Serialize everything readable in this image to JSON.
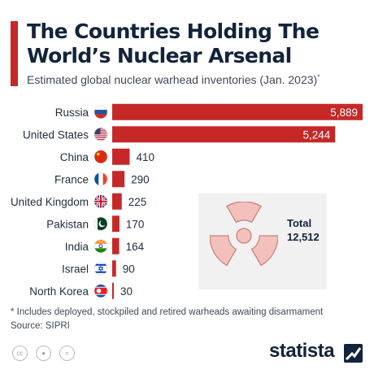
{
  "header": {
    "title": "The Countries Holding The World’s Nuclear Arsenal",
    "subtitle": "Estimated global nuclear warhead inventories (Jan. 2023)",
    "subtitle_mark": "*"
  },
  "chart_data": {
    "type": "bar",
    "orientation": "horizontal",
    "categories": [
      "Russia",
      "United States",
      "China",
      "France",
      "United Kingdom",
      "Pakistan",
      "India",
      "Israel",
      "North Korea"
    ],
    "values": [
      5889,
      5244,
      410,
      290,
      225,
      170,
      164,
      90,
      30
    ],
    "value_labels": [
      "5,889",
      "5,244",
      "410",
      "290",
      "225",
      "170",
      "164",
      "90",
      "30"
    ],
    "flag_icons": [
      "russia-flag-icon",
      "usa-flag-icon",
      "china-flag-icon",
      "france-flag-icon",
      "uk-flag-icon",
      "pakistan-flag-icon",
      "india-flag-icon",
      "israel-flag-icon",
      "north-korea-flag-icon"
    ],
    "xlim": [
      0,
      5889
    ],
    "grid": false,
    "bar_color": "#c62828"
  },
  "total": {
    "label": "Total",
    "value": "12,512",
    "icon": "radiation-icon"
  },
  "footer": {
    "footnote": "* Includes deployed, stockpiled and retired warheads awaiting disarmament",
    "source": "Source: SIPRI",
    "brand": "statista",
    "license_icons": [
      "cc-icon",
      "attribution-icon",
      "no-derivatives-icon"
    ]
  },
  "colors": {
    "accent": "#c62828",
    "title": "#13233c",
    "panel": "#f1f1f1",
    "icon_light": "#f4c0bc"
  }
}
